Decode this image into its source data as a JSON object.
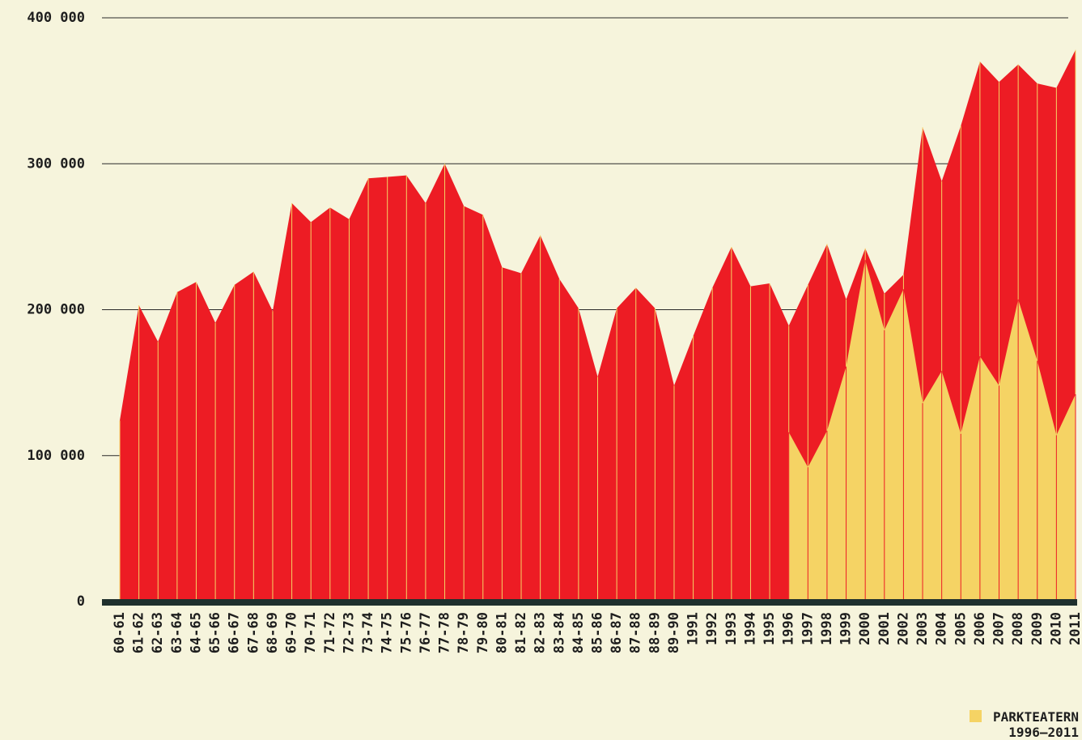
{
  "chart_data": {
    "type": "area",
    "categories": [
      "60-61",
      "61-62",
      "62-63",
      "63-64",
      "64-65",
      "65-66",
      "66-67",
      "67-68",
      "68-69",
      "69-70",
      "70-71",
      "71-72",
      "72-73",
      "73-74",
      "74-75",
      "75-76",
      "76-77",
      "77-78",
      "78-79",
      "79-80",
      "80-81",
      "81-82",
      "82-83",
      "83-84",
      "84-85",
      "85-86",
      "86-87",
      "87-88",
      "88-89",
      "89-90",
      "1991",
      "1992",
      "1993",
      "1994",
      "1995",
      "1996",
      "1997",
      "1998",
      "1999",
      "2000",
      "2001",
      "2002",
      "2003",
      "2004",
      "2005",
      "2006",
      "2007",
      "2008",
      "2009",
      "2010",
      "2011"
    ],
    "series": [
      {
        "color": "#ed1c24",
        "values": [
          124000,
          203000,
          178000,
          212000,
          219000,
          191000,
          217000,
          226000,
          199000,
          273000,
          260000,
          270000,
          262000,
          290000,
          291000,
          292000,
          273000,
          300000,
          271000,
          265000,
          229000,
          225000,
          251000,
          221000,
          201000,
          154000,
          201000,
          215000,
          201000,
          148000,
          182000,
          215000,
          243000,
          216000,
          218000,
          189000,
          217000,
          245000,
          207000,
          242000,
          211000,
          224000,
          325000,
          288000,
          326000,
          370000,
          356000,
          368000,
          355000,
          352000,
          378000
        ]
      },
      {
        "name": "PARKTEATERN 1996–2011",
        "color": "#f5d364",
        "values": [
          null,
          null,
          null,
          null,
          null,
          null,
          null,
          null,
          null,
          null,
          null,
          null,
          null,
          null,
          null,
          null,
          null,
          null,
          null,
          null,
          null,
          null,
          null,
          null,
          null,
          null,
          null,
          null,
          null,
          null,
          null,
          null,
          null,
          null,
          null,
          116000,
          92000,
          117000,
          161000,
          234000,
          186000,
          214000,
          136000,
          158000,
          115000,
          168000,
          148000,
          207000,
          165000,
          114000,
          142000
        ]
      }
    ],
    "ylim": [
      0,
      400000
    ],
    "yticks": [
      0,
      {
        "value": 100000,
        "label": "100 000"
      },
      {
        "value": 200000,
        "label": "200 000"
      },
      {
        "value": 300000,
        "label": "300 000"
      },
      {
        "value": 400000,
        "label": "400 000"
      }
    ],
    "grid": true,
    "legend": "bottom-right"
  }
}
